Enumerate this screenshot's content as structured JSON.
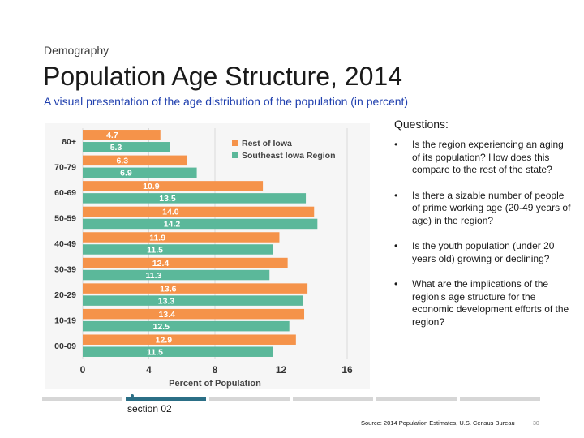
{
  "header": {
    "kicker": "Demography",
    "title": "Population Age Structure, 2014",
    "subtitle": "A visual presentation of the age distribution of the population (in percent)"
  },
  "chart_data": {
    "type": "bar",
    "orientation": "horizontal",
    "categories": [
      "80+",
      "70-79",
      "60-69",
      "50-59",
      "40-49",
      "30-39",
      "20-29",
      "10-19",
      "00-09"
    ],
    "series": [
      {
        "name": "Rest of Iowa",
        "color": "#f5934a",
        "values": [
          4.7,
          6.3,
          10.9,
          14.0,
          11.9,
          12.4,
          13.6,
          13.4,
          12.9
        ],
        "labels": [
          "4.7",
          "6.3",
          "10.9",
          "14.0",
          "11.9",
          "12.4",
          "13.6",
          "13.4",
          "12.9"
        ]
      },
      {
        "name": "Southeast Iowa Region",
        "color": "#5bb89a",
        "values": [
          5.3,
          6.9,
          13.5,
          14.2,
          11.5,
          11.3,
          13.3,
          12.5,
          11.5
        ],
        "labels": [
          "5.3",
          "6.9",
          "13.5",
          "14.2",
          "11.5",
          "11.3",
          "13.3",
          "12.5",
          "11.5"
        ]
      }
    ],
    "xlabel": "Percent of Population",
    "xlim": [
      0,
      16
    ],
    "xticks": [
      "0",
      "4",
      "8",
      "12",
      "16"
    ],
    "grid": true,
    "legend_position": "top-right"
  },
  "questions": {
    "heading": "Questions:",
    "bullet": "•",
    "items": [
      "Is the region experiencing an aging of its population?  How does this compare to the rest of the state?",
      "Is there a sizable number of people of prime working age (20-49 years of age) in the region?",
      "Is the youth population (under 20 years old) growing or declining?",
      "What are the implications of the region's age structure for the economic development efforts of the region?"
    ]
  },
  "footer": {
    "section": "section 02",
    "source": "Source: 2014 Population Estimates, U.S. Census Bureau",
    "page": "30",
    "active_segment": 1,
    "segment_count": 6
  }
}
